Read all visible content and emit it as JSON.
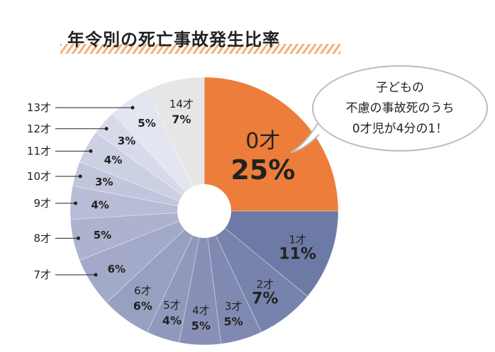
{
  "chart_data": {
    "type": "pie",
    "title": "年令別の死亡事故発生比率",
    "categories": [
      "0才",
      "1才",
      "2才",
      "3才",
      "4才",
      "5才",
      "6才",
      "7才",
      "8才",
      "9才",
      "10才",
      "11才",
      "12才",
      "13才",
      "14才"
    ],
    "values": [
      25,
      11,
      7,
      5,
      5,
      4,
      6,
      6,
      5,
      4,
      3,
      4,
      3,
      5,
      7
    ],
    "value_labels": [
      "25%",
      "11%",
      "7%",
      "5%",
      "5%",
      "4%",
      "6%",
      "6%",
      "5%",
      "4%",
      "3%",
      "4%",
      "3%",
      "5%",
      "7%"
    ],
    "colors": [
      "#ec7d3a",
      "#6e7aa6",
      "#7883ad",
      "#8089b2",
      "#8890b7",
      "#9098bc",
      "#98a0c1",
      "#a3a9c8",
      "#adb2cf",
      "#b8bcd6",
      "#c2c6dc",
      "#ccd0e3",
      "#d8daea",
      "#e3e5f0",
      "#e6e6e6"
    ],
    "annotation": [
      "子どもの",
      "不慮の事故死のうち",
      "0才児が4分の1！"
    ]
  }
}
